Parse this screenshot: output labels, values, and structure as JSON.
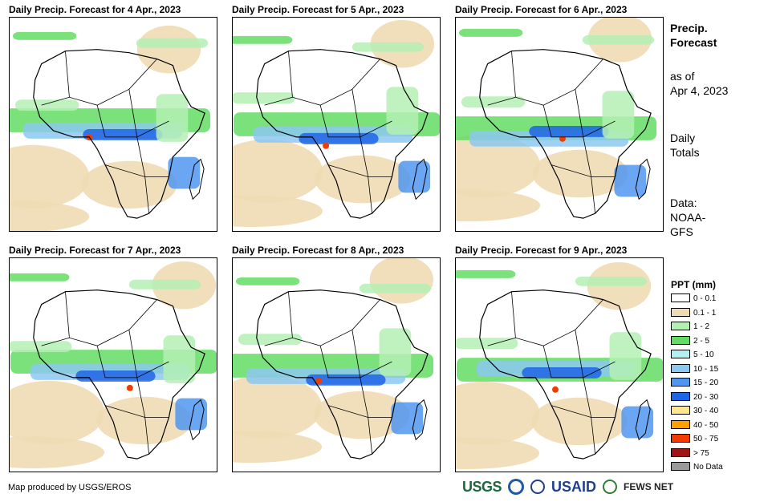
{
  "panels": [
    {
      "title": "Daily Precip. Forecast for 4 Apr., 2023"
    },
    {
      "title": "Daily Precip. Forecast for 5 Apr., 2023"
    },
    {
      "title": "Daily Precip. Forecast for 6 Apr., 2023"
    },
    {
      "title": "Daily Precip. Forecast for 7 Apr., 2023"
    },
    {
      "title": "Daily Precip. Forecast for 8 Apr., 2023"
    },
    {
      "title": "Daily Precip. Forecast for 9 Apr., 2023"
    }
  ],
  "sidebar": {
    "title_line1": "Precip.",
    "title_line2": "Forecast",
    "asof_line1": "as of",
    "asof_line2": "Apr 4, 2023",
    "totals_line1": "Daily",
    "totals_line2": "Totals",
    "data_line1": "Data:",
    "data_line2": "NOAA-",
    "data_line3": "GFS"
  },
  "legend": {
    "title": "PPT (mm)",
    "items": [
      {
        "label": "0 - 0.1",
        "color": "#ffffff"
      },
      {
        "label": "0.1 - 1",
        "color": "#f0dcb4"
      },
      {
        "label": "1 - 2",
        "color": "#b4f0b4"
      },
      {
        "label": "2 - 5",
        "color": "#64dc64"
      },
      {
        "label": "5 - 10",
        "color": "#b4f0f0"
      },
      {
        "label": "10 - 15",
        "color": "#8cc8f0"
      },
      {
        "label": "15 - 20",
        "color": "#5096f0"
      },
      {
        "label": "20 - 30",
        "color": "#1e64e6"
      },
      {
        "label": "30 - 40",
        "color": "#ffe68c"
      },
      {
        "label": "40 - 50",
        "color": "#ffa000"
      },
      {
        "label": "50 - 75",
        "color": "#f03c00"
      },
      {
        "label": "> 75",
        "color": "#a01414"
      },
      {
        "label": "No Data",
        "color": "#999999"
      }
    ]
  },
  "footer": {
    "credit": "Map produced by USGS/EROS",
    "logo_usgs": "USGS",
    "logo_usaid": "USAID",
    "logo_fews": "FEWS NET"
  }
}
